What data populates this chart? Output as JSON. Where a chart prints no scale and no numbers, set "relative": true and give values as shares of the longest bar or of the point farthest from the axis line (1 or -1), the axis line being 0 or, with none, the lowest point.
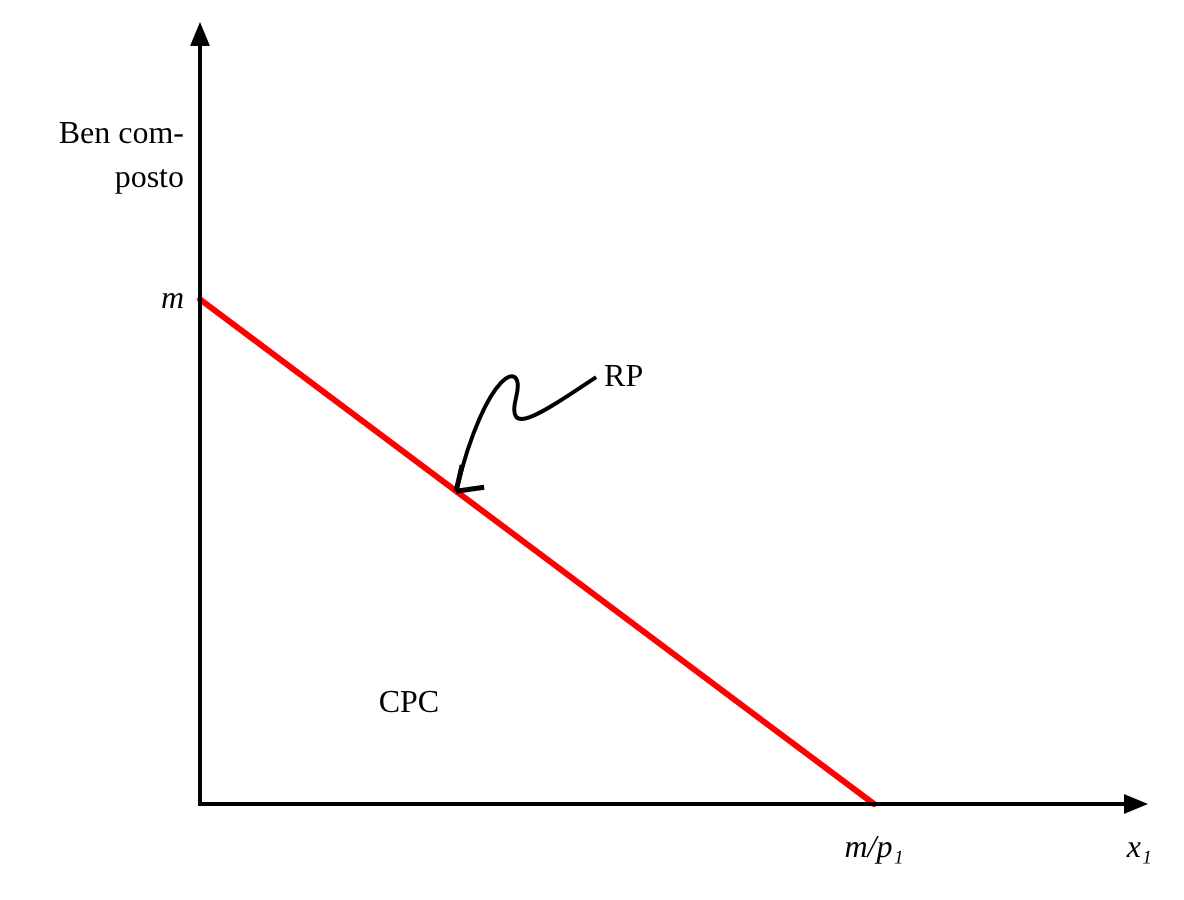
{
  "chart_data": {
    "type": "line",
    "ylabel": "Ben com-\nposto",
    "xlabel": "x₁",
    "categories": [
      null,
      null
    ],
    "relative": true,
    "series": [
      {
        "color": "#ff0000",
        "values": [
          1,
          0
        ]
      }
    ],
    "annotations": [
      "m",
      "m/p₁",
      "RP",
      "CPC"
    ],
    "grid": false,
    "marker": "none",
    "line_style": "solid"
  }
}
